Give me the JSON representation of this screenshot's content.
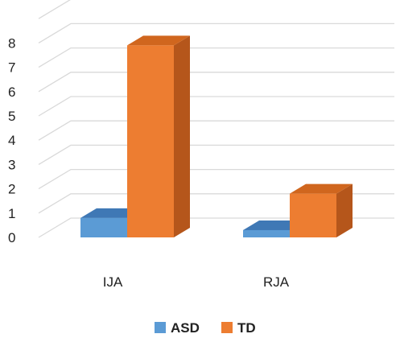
{
  "chart_data": {
    "type": "bar",
    "categories": [
      "IJA",
      "RJA"
    ],
    "series": [
      {
        "name": "ASD",
        "values": [
          0.8,
          0.3
        ]
      },
      {
        "name": "TD",
        "values": [
          7.9,
          1.8
        ]
      }
    ],
    "yticks": [
      "0",
      "1",
      "2",
      "3",
      "4",
      "5",
      "6",
      "7",
      "8"
    ],
    "ylim": [
      0,
      9
    ],
    "grid": true,
    "legend_position": "bottom",
    "colors": {
      "ASD": {
        "front": "#5B9BD5",
        "top": "#3F78B5",
        "side": "#41719C"
      },
      "TD": {
        "front": "#ED7D31",
        "top": "#D0661E",
        "side": "#B5561B"
      },
      "grid": "#D9D9D9"
    }
  }
}
